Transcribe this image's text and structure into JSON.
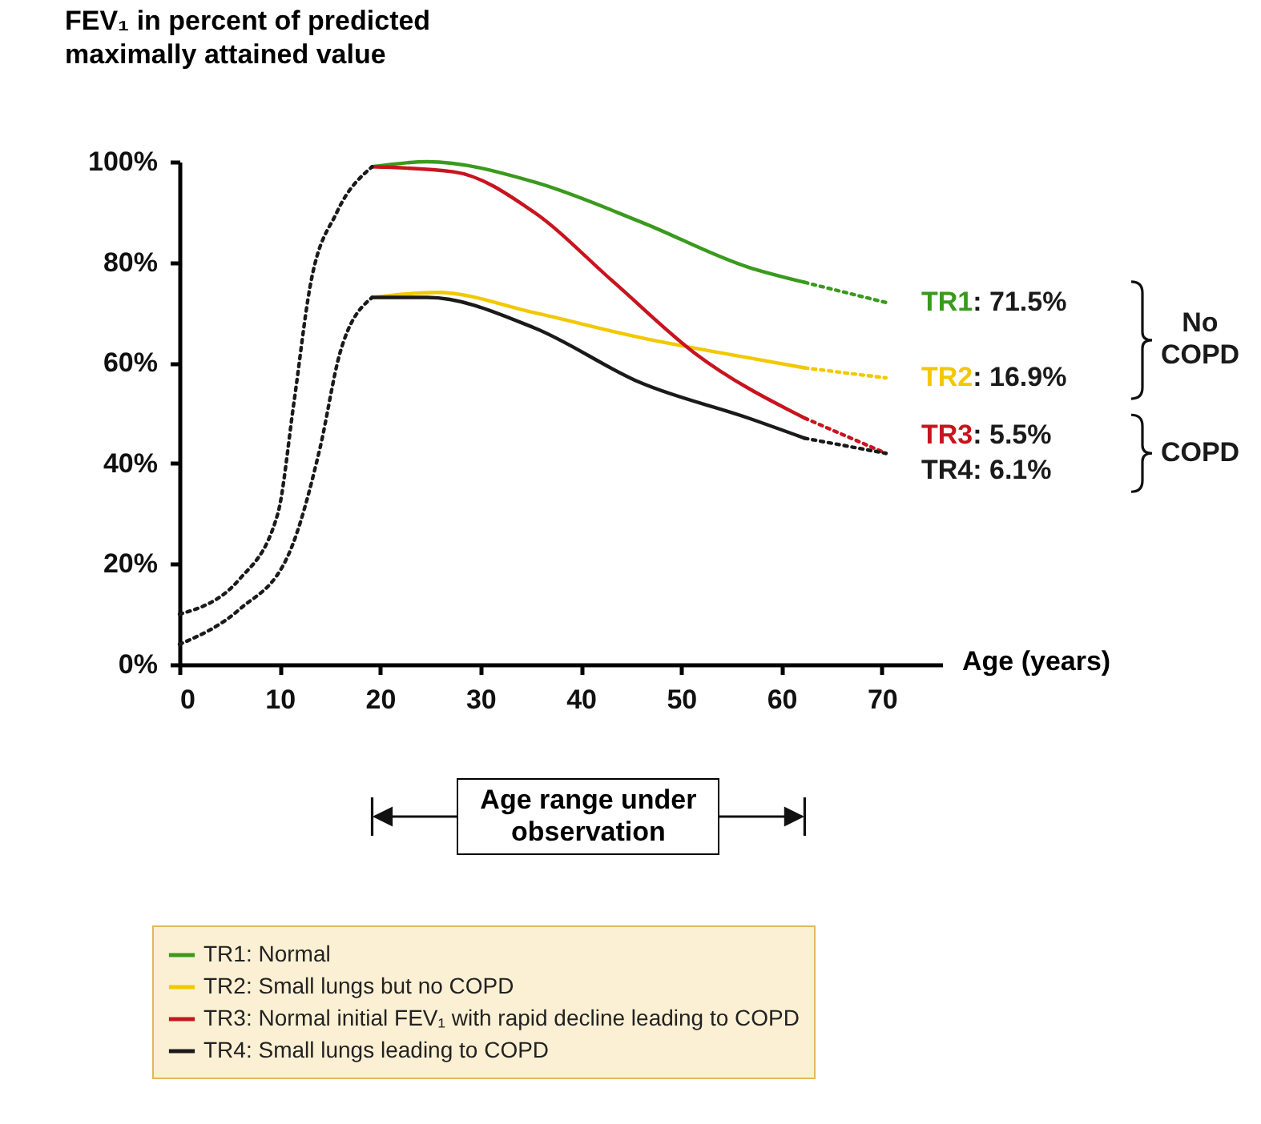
{
  "chart_data": {
    "type": "line",
    "ylabel": "FEV₁ in percent of predicted maximally attained value",
    "xlabel": "Age (years)",
    "xlim": [
      0,
      76
    ],
    "xticks": [
      0,
      10,
      20,
      30,
      40,
      50,
      60,
      70
    ],
    "ylim": [
      0,
      100
    ],
    "yticks": [
      {
        "value": 0,
        "label": "0%"
      },
      {
        "value": 20,
        "label": "20%"
      },
      {
        "value": 40,
        "label": "40%"
      },
      {
        "value": 60,
        "label": "60%"
      },
      {
        "value": 80,
        "label": "80%"
      },
      {
        "value": 100,
        "label": "100%"
      }
    ],
    "series": [
      {
        "name": "TR1: Normal",
        "color": "#3a9a1e",
        "line_style": "solid",
        "x": [
          19.2,
          24.7,
          35.3,
          46,
          56.7,
          62.3
        ],
        "values": [
          99,
          100,
          96,
          88,
          79,
          76
        ]
      },
      {
        "name": "TR2: Small lungs but no COPD",
        "color": "#f2c800",
        "line_style": "solid",
        "x": [
          19.2,
          25.7,
          35.3,
          46,
          56.7,
          62.3
        ],
        "values": [
          73,
          74,
          70,
          65,
          61,
          59
        ]
      },
      {
        "name": "TR3: Normal initial FEV₁ with rapid decline leading to COPD",
        "color": "#c8141e",
        "line_style": "solid",
        "x": [
          19.2,
          27.3,
          35.3,
          43.3,
          51.3,
          62.3
        ],
        "values": [
          99,
          98,
          90,
          76,
          62,
          49
        ]
      },
      {
        "name": "TR4: Small lungs leading to COPD",
        "color": "#1a1a1a",
        "line_style": "solid",
        "x": [
          19.2,
          24.7,
          35.3,
          46,
          56.7,
          62.3
        ],
        "values": [
          73,
          73,
          67,
          56,
          49,
          45
        ]
      },
      {
        "color": "#3a9a1e",
        "line_style": "dotted",
        "x": [
          62.3,
          70.4
        ],
        "values": [
          76,
          72
        ]
      },
      {
        "color": "#f2c800",
        "line_style": "dotted",
        "x": [
          62.3,
          70.4
        ],
        "values": [
          59,
          57
        ]
      },
      {
        "color": "#c8141e",
        "line_style": "dotted",
        "x": [
          62.3,
          70.4
        ],
        "values": [
          49,
          42
        ]
      },
      {
        "color": "#1a1a1a",
        "line_style": "dotted",
        "x": [
          62.3,
          70.4
        ],
        "values": [
          45,
          42
        ]
      },
      {
        "color": "#1a1a1a",
        "line_style": "dotted",
        "x": [
          0,
          6,
          9.8,
          11.4,
          13,
          15.7,
          19.2
        ],
        "values": [
          10,
          17,
          30,
          52,
          75,
          90,
          99
        ]
      },
      {
        "color": "#1a1a1a",
        "line_style": "dotted",
        "x": [
          0,
          6,
          10.9,
          14,
          16,
          19.2
        ],
        "values": [
          4,
          11,
          22,
          43,
          62,
          73
        ]
      }
    ],
    "annotations": [
      "TR1: 71.5%",
      "TR2: 16.9%",
      "TR3: 5.5%",
      "TR4: 6.1%",
      "No COPD",
      "COPD",
      "Age range under observation"
    ],
    "legend": "bottom"
  }
}
